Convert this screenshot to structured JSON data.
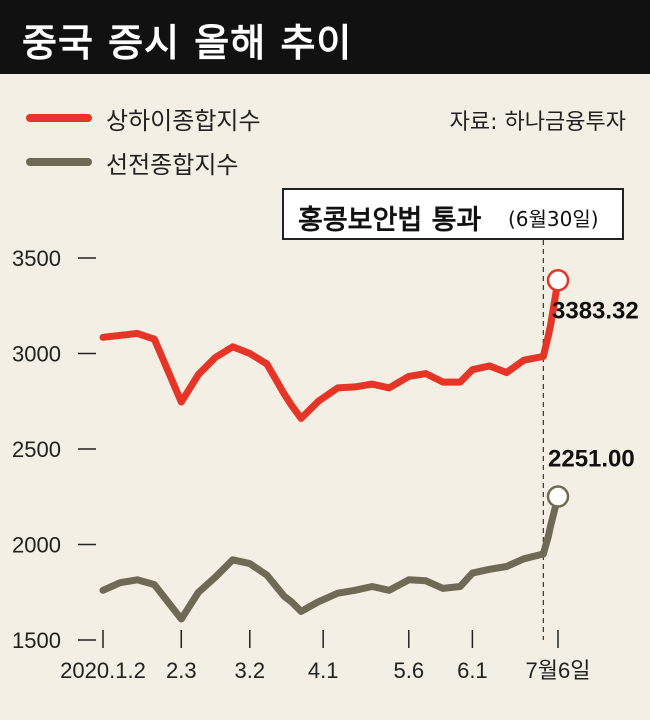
{
  "title": "중국 증시 올해 추이",
  "legend": [
    {
      "label": "상하이종합지수",
      "color": "#e63427"
    },
    {
      "label": "선전종합지수",
      "color": "#6f6a55"
    }
  ],
  "source": "자료: 하나금융투자",
  "annotation": {
    "main": "홍콩보안법 통과",
    "sub": "(6월30일)"
  },
  "chart_data": {
    "type": "line",
    "title": "중국 증시 올해 추이",
    "xlabel": "",
    "ylabel": "",
    "ylim": [
      1500,
      3500
    ],
    "yticks": [
      "3500",
      "3000",
      "2500",
      "2000",
      "1500"
    ],
    "x_tick_labels": [
      "2020.1.2",
      "2.3",
      "3.2",
      "4.1",
      "5.6",
      "6.1",
      "7월6일"
    ],
    "x": [
      "2020-01-02",
      "2020-01-09",
      "2020-01-16",
      "2020-01-23",
      "2020-02-03",
      "2020-02-10",
      "2020-02-17",
      "2020-02-24",
      "2020-03-02",
      "2020-03-09",
      "2020-03-16",
      "2020-03-19",
      "2020-03-23",
      "2020-03-30",
      "2020-04-07",
      "2020-04-14",
      "2020-04-21",
      "2020-04-28",
      "2020-05-06",
      "2020-05-13",
      "2020-05-20",
      "2020-05-27",
      "2020-06-01",
      "2020-06-08",
      "2020-06-15",
      "2020-06-22",
      "2020-06-30",
      "2020-07-02",
      "2020-07-03",
      "2020-07-06"
    ],
    "series": [
      {
        "name": "상하이종합지수",
        "color": "#e63427",
        "values": [
          3085,
          3095,
          3105,
          3075,
          2746,
          2890,
          2980,
          3035,
          3000,
          2945,
          2790,
          2730,
          2660,
          2750,
          2820,
          2825,
          2840,
          2820,
          2880,
          2895,
          2850,
          2850,
          2915,
          2935,
          2900,
          2965,
          2985,
          3090,
          3152,
          3383.32
        ],
        "end_label": "3383.32"
      },
      {
        "name": "선전종합지수",
        "color": "#6f6a55",
        "values": [
          1760,
          1800,
          1815,
          1790,
          1610,
          1750,
          1830,
          1920,
          1900,
          1840,
          1730,
          1700,
          1650,
          1700,
          1745,
          1760,
          1780,
          1760,
          1815,
          1810,
          1770,
          1780,
          1850,
          1870,
          1885,
          1925,
          1950,
          2040,
          2100,
          2251.0
        ],
        "end_label": "2251.00"
      }
    ],
    "annotation": {
      "text": "홍콩보안법 통과",
      "date_text": "(6월30일)",
      "x": "2020-06-30"
    }
  }
}
